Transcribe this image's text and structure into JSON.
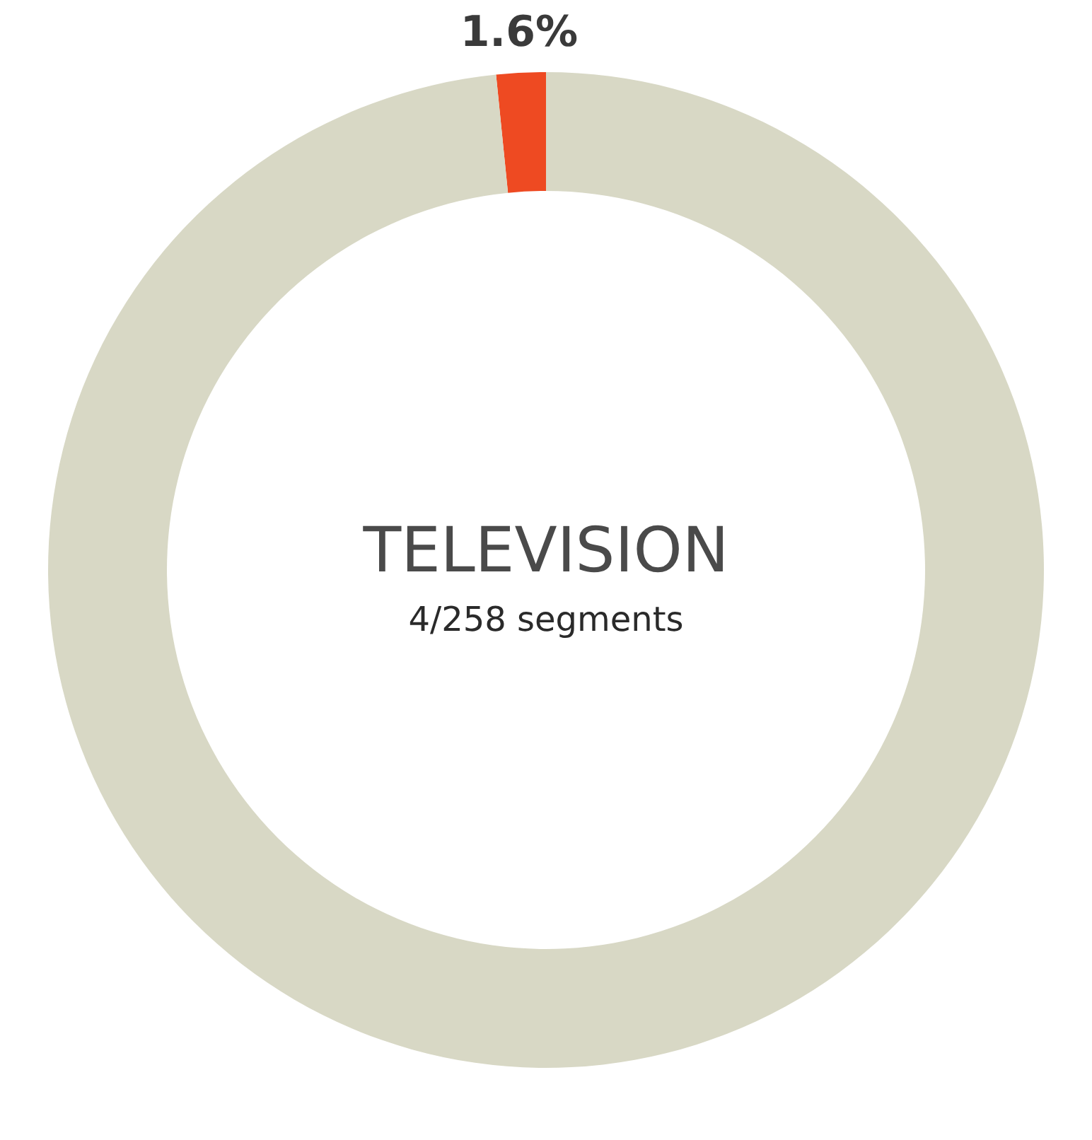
{
  "chart_data": {
    "type": "donut",
    "title": "TELEVISION",
    "subtitle": "4/258 segments",
    "categories": [
      null,
      null
    ],
    "values": [
      1.6,
      98.4
    ],
    "colors": [
      "#ee4a22",
      "#d8d8c5"
    ],
    "value_labels": [
      "1.6%",
      null
    ]
  }
}
